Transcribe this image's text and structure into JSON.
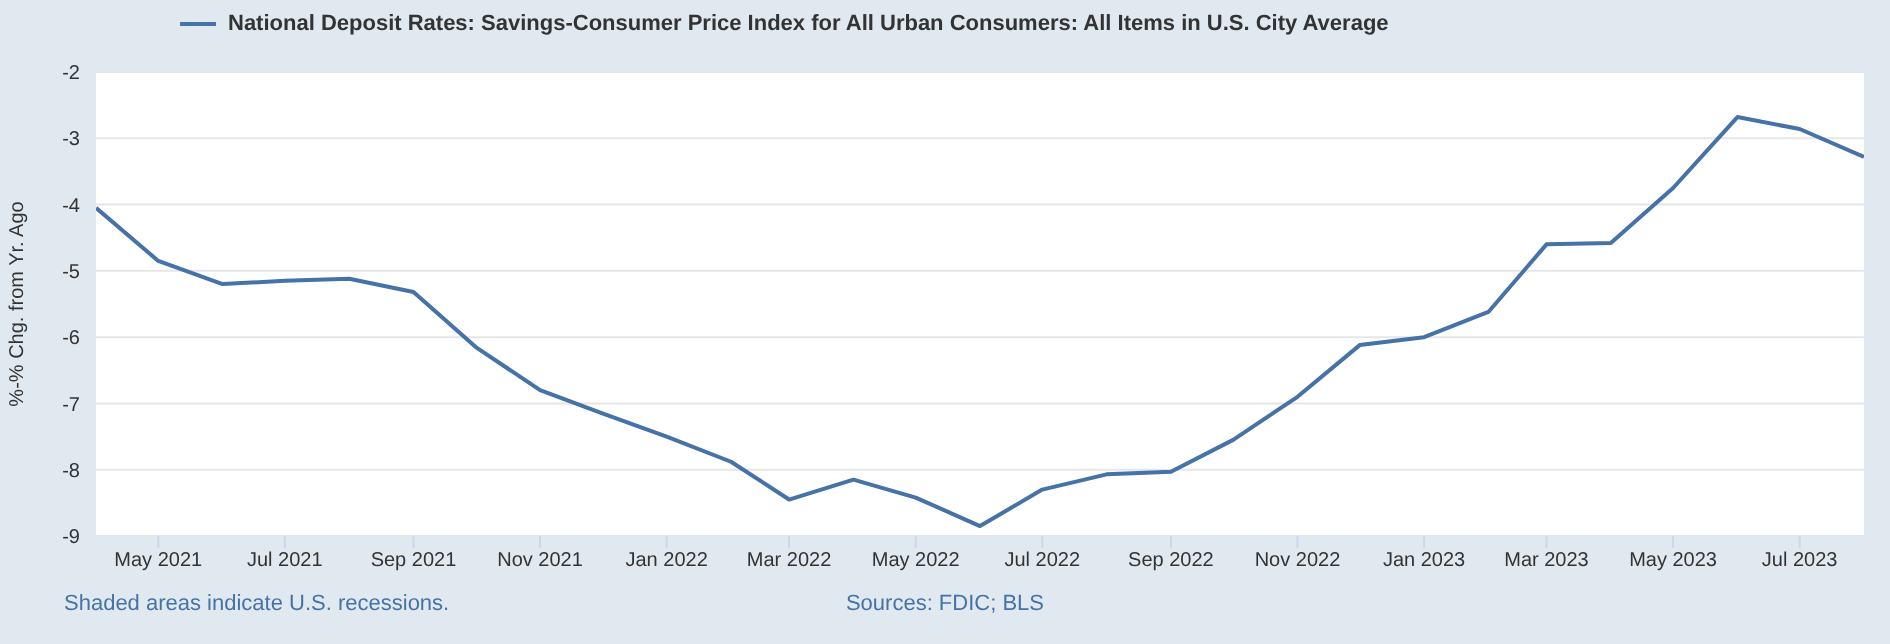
{
  "chart_data": {
    "type": "line",
    "ylabel": "%-% Chg. from Yr. Ago",
    "x": [
      "2021-04",
      "2021-05",
      "2021-06",
      "2021-07",
      "2021-08",
      "2021-09",
      "2021-10",
      "2021-11",
      "2021-12",
      "2022-01",
      "2022-02",
      "2022-03",
      "2022-04",
      "2022-05",
      "2022-06",
      "2022-07",
      "2022-08",
      "2022-09",
      "2022-10",
      "2022-11",
      "2022-12",
      "2023-01",
      "2023-02",
      "2023-03",
      "2023-04",
      "2023-05",
      "2023-06",
      "2023-07",
      "2023-08"
    ],
    "series": [
      {
        "name": "National Deposit Rates: Savings-Consumer Price Index for All Urban Consumers: All Items in U.S. City Average",
        "color": "#4572a7",
        "values": [
          -4.05,
          -4.85,
          -5.2,
          -5.15,
          -5.12,
          -5.32,
          -6.15,
          -6.8,
          -7.15,
          -7.5,
          -7.88,
          -8.45,
          -8.15,
          -8.42,
          -8.85,
          -8.3,
          -8.07,
          -8.03,
          -7.55,
          -6.9,
          -6.12,
          -6.0,
          -5.62,
          -4.6,
          -4.58,
          -3.75,
          -2.68,
          -2.86,
          -3.28
        ]
      }
    ],
    "xlim": [
      "2021-04",
      "2023-08"
    ],
    "xticks": [
      {
        "value": "2021-05",
        "label": "May 2021"
      },
      {
        "value": "2021-07",
        "label": "Jul 2021"
      },
      {
        "value": "2021-09",
        "label": "Sep 2021"
      },
      {
        "value": "2021-11",
        "label": "Nov 2021"
      },
      {
        "value": "2022-01",
        "label": "Jan 2022"
      },
      {
        "value": "2022-03",
        "label": "Mar 2022"
      },
      {
        "value": "2022-05",
        "label": "May 2022"
      },
      {
        "value": "2022-07",
        "label": "Jul 2022"
      },
      {
        "value": "2022-09",
        "label": "Sep 2022"
      },
      {
        "value": "2022-11",
        "label": "Nov 2022"
      },
      {
        "value": "2023-01",
        "label": "Jan 2023"
      },
      {
        "value": "2023-03",
        "label": "Mar 2023"
      },
      {
        "value": "2023-05",
        "label": "May 2023"
      },
      {
        "value": "2023-07",
        "label": "Jul 2023"
      }
    ],
    "ylim": [
      -9,
      -2
    ],
    "yticks": [
      -9,
      -8,
      -7,
      -6,
      -5,
      -4,
      -3,
      -2
    ],
    "grid": "y",
    "legend": "top left",
    "annotations": [
      "Shaded areas indicate U.S. recessions.",
      "Sources: FDIC; BLS"
    ]
  }
}
